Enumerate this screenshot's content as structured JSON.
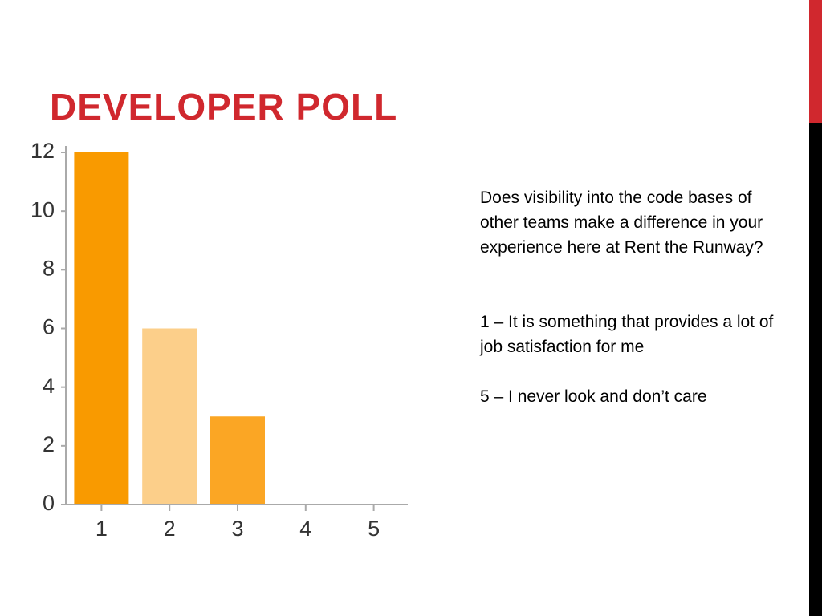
{
  "chart_data": {
    "type": "bar",
    "title": "DEVELOPER POLL",
    "categories": [
      "1",
      "2",
      "3",
      "4",
      "5"
    ],
    "values": [
      12,
      6,
      3,
      0,
      0
    ],
    "colors": [
      "#f99a00",
      "#fccf8a",
      "#fba624",
      "#f99a00",
      "#fccf8a"
    ],
    "ylim": [
      0,
      12
    ],
    "yticks": [
      0,
      2,
      4,
      6,
      8,
      10,
      12
    ],
    "grid": false,
    "annotations": [
      "Does visibility into the code bases of other teams make a difference in your experience here at Rent the Runway?",
      "1 – It is something that provides a lot of job satisfaction for me",
      "5 – I never look and don’t care"
    ]
  }
}
